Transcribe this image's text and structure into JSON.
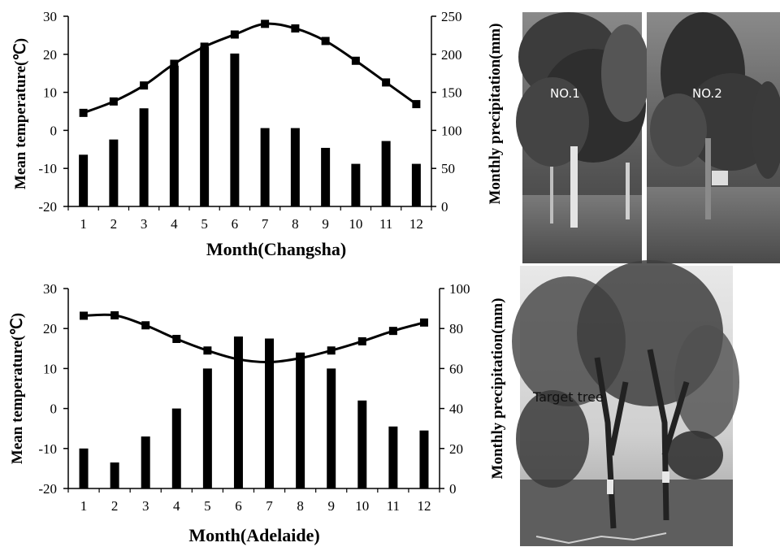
{
  "chart_data": [
    {
      "type": "bar+line",
      "xlabel": "Month(Changsha)",
      "ylabel_left": "Mean temperature(℃)",
      "ylabel_right": "Monthly precipitation(mm)",
      "categories": [
        "1",
        "2",
        "3",
        "4",
        "5",
        "6",
        "7",
        "8",
        "9",
        "10",
        "11",
        "12"
      ],
      "temp_ylim": [
        -20,
        30
      ],
      "temp_ticks": [
        "30",
        "20",
        "10",
        "0",
        "-10",
        "-20"
      ],
      "precip_ylim": [
        0,
        250
      ],
      "precip_ticks": [
        "250",
        "200",
        "150",
        "100",
        "50",
        "0"
      ],
      "series": [
        {
          "name": "",
          "kind": "line-temperature",
          "values": [
            4.6,
            7.6,
            11.8,
            17.5,
            22.0,
            25.2,
            28.0,
            26.8,
            23.5,
            18.3,
            12.6,
            6.9
          ]
        },
        {
          "name": "",
          "kind": "bar-precipitation",
          "values": [
            68,
            88,
            129,
            185,
            210,
            201,
            103,
            103,
            77,
            56,
            86,
            56
          ]
        }
      ]
    },
    {
      "type": "bar+line",
      "xlabel": "Month(Adelaide)",
      "ylabel_left": "Mean temperature(℃)",
      "ylabel_right": "Monthly precipitation(mm)",
      "categories": [
        "1",
        "2",
        "3",
        "4",
        "5",
        "6",
        "7",
        "8",
        "9",
        "10",
        "11",
        "12"
      ],
      "temp_ylim": [
        -20,
        30
      ],
      "temp_ticks": [
        "30",
        "20",
        "10",
        "0",
        "-10",
        "-20"
      ],
      "precip_ylim": [
        0,
        100
      ],
      "precip_ticks": [
        "100",
        "80",
        "60",
        "40",
        "20",
        "0"
      ],
      "series": [
        {
          "name": "",
          "kind": "line-temperature",
          "values": [
            23.2,
            23.3,
            20.8,
            17.4,
            14.5,
            12.3,
            11.6,
            12.6,
            14.5,
            16.8,
            19.4,
            21.5
          ]
        },
        {
          "name": "",
          "kind": "bar-precipitation",
          "values": [
            20,
            13,
            26,
            40,
            60,
            76,
            75,
            68,
            60,
            44,
            31,
            29
          ]
        }
      ]
    }
  ],
  "photos": {
    "changsha_labels": [
      "NO.1",
      "NO.2"
    ],
    "adelaide_label": "Target tree"
  }
}
